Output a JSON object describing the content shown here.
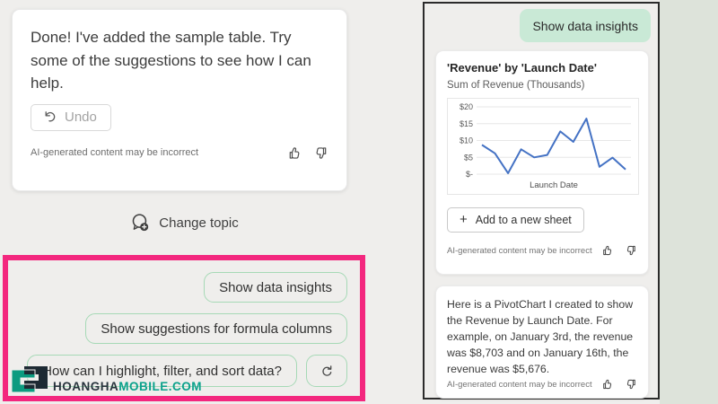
{
  "left_panel": {
    "assistant_card": {
      "message": "Done! I've added the sample table. Try some of the suggestions to see how I can help.",
      "undo_label": "Undo",
      "disclaimer": "AI-generated content may be incorrect"
    },
    "change_topic_label": "Change topic",
    "suggestions": {
      "items": [
        "Show data insights",
        "Show suggestions for formula columns",
        "How can I highlight, filter, and sort data?"
      ]
    },
    "watermark": {
      "brand_dark": "HOANGHA",
      "brand_teal": "MOBILE.COM"
    }
  },
  "right_panel": {
    "user_message": "Show data insights",
    "chart_card": {
      "title": "'Revenue' by 'Launch Date'",
      "subtitle": "Sum of Revenue (Thousands)",
      "add_button_label": "Add to a new sheet",
      "disclaimer": "AI-generated content may be incorrect"
    },
    "reply_card": {
      "message": "Here is a PivotChart I created to show the Revenue by Launch Date. For example, on January 3rd, the revenue was $8,703 and on January 16th, the revenue was $5,676.",
      "disclaimer": "AI-generated content may be incorrect"
    }
  },
  "chart_data": {
    "type": "line",
    "title": "'Revenue' by 'Launch Date'",
    "subtitle": "Sum of Revenue (Thousands)",
    "xlabel": "Launch Date",
    "ylabel": "Sum of Revenue (Thousands)",
    "ylim": [
      0,
      20
    ],
    "ytick_values": [
      20,
      15,
      10,
      5,
      0
    ],
    "ytick_labels": [
      "$20",
      "$15",
      "$10",
      "$5",
      "$-"
    ],
    "values": [
      8.7,
      6.2,
      0.3,
      7.4,
      5.0,
      5.7,
      12.7,
      9.6,
      16.5,
      2.2,
      4.9,
      1.4
    ],
    "grid": true,
    "line_color": "#4472C4",
    "grid_color": "#e7e7e7",
    "tick_color": "#595959"
  },
  "icons": {
    "undo": "undo-arrow",
    "thumb_up": "thumb-up-outline",
    "thumb_down": "thumb-down-outline",
    "change_topic": "chat-bubble-plus",
    "refresh": "circular-refresh-arrow",
    "add": "plus"
  },
  "colors": {
    "highlight_pink": "#F3277E",
    "mint_bubble": "#C9E9D6",
    "pill_border": "#A6D9B6",
    "brand_teal": "#0AA18B",
    "chart_line": "#4472C4",
    "left_bg": "#EFEEEC",
    "right_bg": "#DDE3DA"
  }
}
